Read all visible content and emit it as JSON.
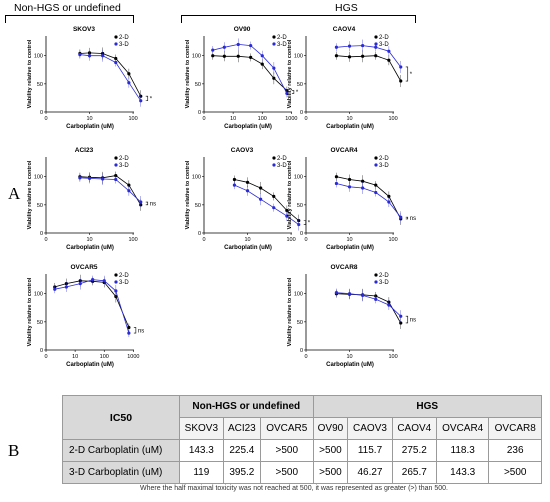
{
  "groups": {
    "left_title": "Non-HGS or undefined",
    "right_title": "HGS"
  },
  "panel_labels": {
    "a": "A",
    "b": "B"
  },
  "colors": {
    "two_d": "#000000",
    "three_d": "#2b2bd6"
  },
  "chart_data": [
    {
      "type": "scatter",
      "title": "SKOV3",
      "xlabel": "Carboplatin (uM)",
      "ylabel": "Viability relative to control",
      "xticks": [
        0,
        10,
        100
      ],
      "yticks": [
        0,
        50,
        100
      ],
      "legend": [
        "2-D",
        "3-D"
      ],
      "sig": "*",
      "series": [
        {
          "name": "2-D",
          "x": [
            6,
            10,
            20,
            40,
            80,
            150
          ],
          "y": [
            104,
            105,
            104,
            95,
            68,
            28
          ]
        },
        {
          "name": "3-D",
          "x": [
            6,
            10,
            20,
            40,
            80,
            150
          ],
          "y": [
            102,
            100,
            100,
            88,
            52,
            20
          ]
        }
      ]
    },
    {
      "type": "scatter",
      "title": "OV90",
      "xlabel": "Carboplatin (uM)",
      "ylabel": "Viability relative to control",
      "xticks": [
        0,
        10,
        100,
        1000
      ],
      "yticks": [
        0,
        50,
        100
      ],
      "legend": [
        "2-D",
        "3-D"
      ],
      "sig": "*",
      "series": [
        {
          "name": "2-D",
          "x": [
            2,
            5,
            15,
            40,
            100,
            250,
            700
          ],
          "y": [
            100,
            99,
            99,
            97,
            85,
            60,
            38
          ]
        },
        {
          "name": "3-D",
          "x": [
            2,
            5,
            15,
            40,
            100,
            250,
            700
          ],
          "y": [
            110,
            115,
            120,
            118,
            100,
            78,
            33
          ]
        }
      ]
    },
    {
      "type": "scatter",
      "title": "CAOV4",
      "xlabel": "Carboplatin (uM)",
      "ylabel": "Viability relative to control",
      "xticks": [
        0,
        10,
        100
      ],
      "yticks": [
        0,
        50,
        100
      ],
      "legend": [
        "2-D",
        "3-D"
      ],
      "sig": "*",
      "series": [
        {
          "name": "2-D",
          "x": [
            5,
            10,
            20,
            40,
            80,
            150
          ],
          "y": [
            100,
            98,
            99,
            100,
            92,
            55
          ]
        },
        {
          "name": "3-D",
          "x": [
            5,
            10,
            20,
            40,
            80,
            150
          ],
          "y": [
            115,
            117,
            118,
            115,
            108,
            80
          ]
        }
      ]
    },
    {
      "type": "scatter",
      "title": "ACI23",
      "xlabel": "Carboplatin (uM)",
      "ylabel": "Viability relative to control",
      "xticks": [
        0,
        10,
        100
      ],
      "yticks": [
        0,
        50,
        100
      ],
      "legend": [
        "2-D",
        "3-D"
      ],
      "sig": "ns",
      "series": [
        {
          "name": "2-D",
          "x": [
            6,
            10,
            20,
            40,
            80,
            150
          ],
          "y": [
            100,
            99,
            98,
            102,
            85,
            50
          ]
        },
        {
          "name": "3-D",
          "x": [
            6,
            10,
            20,
            40,
            80,
            150
          ],
          "y": [
            98,
            97,
            96,
            95,
            75,
            55
          ]
        }
      ]
    },
    {
      "type": "scatter",
      "title": "CAOV3",
      "xlabel": "Carboplatin (uM)",
      "ylabel": "Viability relative to control",
      "xticks": [
        0,
        10,
        100
      ],
      "yticks": [
        0,
        50,
        100
      ],
      "legend": [
        "2-D",
        "3-D"
      ],
      "sig": "*",
      "series": [
        {
          "name": "2-D",
          "x": [
            5,
            10,
            20,
            40,
            80,
            150
          ],
          "y": [
            95,
            90,
            80,
            65,
            40,
            22
          ]
        },
        {
          "name": "3-D",
          "x": [
            5,
            10,
            20,
            40,
            80,
            150
          ],
          "y": [
            85,
            75,
            60,
            45,
            30,
            15
          ]
        }
      ]
    },
    {
      "type": "scatter",
      "title": "OVCAR4",
      "xlabel": "Carboplatin (uM)",
      "ylabel": "Viability relative to control",
      "xticks": [
        0,
        10,
        100
      ],
      "yticks": [
        0,
        50,
        100
      ],
      "legend": [
        "2-D",
        "3-D"
      ],
      "sig": "ns",
      "series": [
        {
          "name": "2-D",
          "x": [
            5,
            10,
            20,
            40,
            80,
            150
          ],
          "y": [
            100,
            95,
            92,
            85,
            65,
            25
          ]
        },
        {
          "name": "3-D",
          "x": [
            5,
            10,
            20,
            40,
            80,
            150
          ],
          "y": [
            88,
            82,
            80,
            72,
            55,
            28
          ]
        }
      ]
    },
    {
      "type": "scatter",
      "title": "OVCAR5",
      "xlabel": "Carboplatin (uM)",
      "ylabel": "Viability relative to control",
      "xticks": [
        0,
        10,
        100,
        1000
      ],
      "yticks": [
        0,
        50,
        100
      ],
      "legend": [
        "2-D",
        "3-D"
      ],
      "sig": "ns",
      "series": [
        {
          "name": "2-D",
          "x": [
            2,
            5,
            15,
            40,
            100,
            250,
            700
          ],
          "y": [
            112,
            118,
            123,
            122,
            120,
            95,
            40
          ]
        },
        {
          "name": "3-D",
          "x": [
            2,
            5,
            15,
            40,
            100,
            250,
            700
          ],
          "y": [
            108,
            112,
            118,
            125,
            123,
            105,
            30
          ]
        }
      ]
    },
    {
      "type": "scatter",
      "title": "OVCAR8",
      "xlabel": "Carboplatin (uM)",
      "ylabel": "Viability relative to control",
      "xticks": [
        0,
        10,
        100
      ],
      "yticks": [
        0,
        50,
        100
      ],
      "legend": [
        "2-D",
        "3-D"
      ],
      "sig": "ns",
      "series": [
        {
          "name": "2-D",
          "x": [
            5,
            10,
            20,
            40,
            80,
            150
          ],
          "y": [
            100,
            99,
            98,
            96,
            85,
            48
          ]
        },
        {
          "name": "3-D",
          "x": [
            5,
            10,
            20,
            40,
            80,
            150
          ],
          "y": [
            102,
            100,
            97,
            90,
            80,
            60
          ]
        }
      ]
    },
    {
      "type": "table",
      "header_top": {
        "ic50": "IC50",
        "non_hgs": "Non-HGS or undefined",
        "hgs": "HGS"
      },
      "columns": [
        "SKOV3",
        "ACI23",
        "OVCAR5",
        "OV90",
        "CAOV3",
        "CAOV4",
        "OVCAR4",
        "OVCAR8"
      ],
      "rows": [
        {
          "label": "2-D Carboplatin (uM)",
          "values": [
            "143.3",
            "225.4",
            ">500",
            ">500",
            "115.7",
            "275.2",
            "118.3",
            "236"
          ]
        },
        {
          "label": "3-D Carboplatin (uM)",
          "values": [
            "119",
            "395.2",
            ">500",
            ">500",
            "46.27",
            "265.7",
            "143.3",
            ">500"
          ]
        }
      ]
    }
  ],
  "footnote": "Where the half maximal toxicity was not reached at 500, it was represented as greater (>) than 500."
}
